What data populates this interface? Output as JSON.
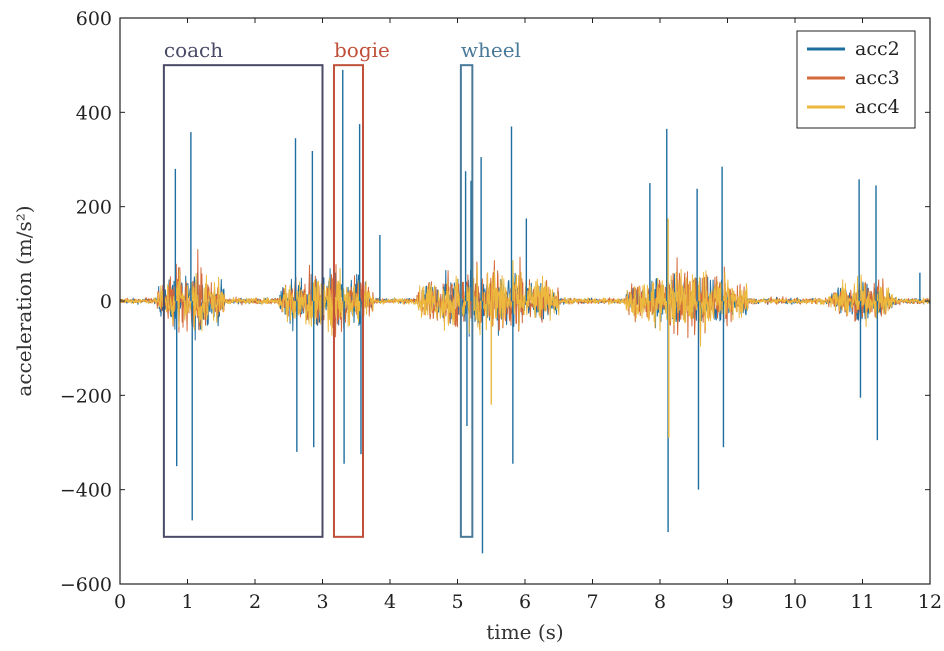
{
  "chart_data": {
    "type": "line",
    "xlabel": "time (s)",
    "ylabel": "acceleration (m/s²)",
    "xlim": [
      0,
      12
    ],
    "ylim": [
      -600,
      600
    ],
    "x_ticks": [
      0,
      1,
      2,
      3,
      4,
      5,
      6,
      7,
      8,
      9,
      10,
      11,
      12
    ],
    "y_ticks": [
      -600,
      -400,
      -200,
      0,
      200,
      400,
      600
    ],
    "y_tick_labels": [
      "−600",
      "−400",
      "−200",
      "0",
      "200",
      "400",
      "600"
    ],
    "grid": false,
    "legend_position": "top-right",
    "series": [
      {
        "name": "acc2",
        "color": "#1f6ea0"
      },
      {
        "name": "acc3",
        "color": "#d46a3a"
      },
      {
        "name": "acc4",
        "color": "#ecb93e"
      }
    ],
    "activity_regions": [
      {
        "x": [
          0.55,
          1.55
        ],
        "amp": 80
      },
      {
        "x": [
          2.35,
          3.75
        ],
        "amp": 80
      },
      {
        "x": [
          4.4,
          6.5
        ],
        "amp": 80
      },
      {
        "x": [
          7.5,
          9.3
        ],
        "amp": 75
      },
      {
        "x": [
          10.5,
          11.5
        ],
        "amp": 45
      }
    ],
    "spikes": [
      {
        "series": "acc2",
        "x": 0.82,
        "y": 280
      },
      {
        "series": "acc2",
        "x": 0.84,
        "y": -350
      },
      {
        "series": "acc2",
        "x": 1.05,
        "y": 358
      },
      {
        "series": "acc2",
        "x": 1.07,
        "y": -465
      },
      {
        "series": "acc2",
        "x": 2.6,
        "y": 345
      },
      {
        "series": "acc2",
        "x": 2.62,
        "y": -320
      },
      {
        "series": "acc2",
        "x": 2.85,
        "y": 318
      },
      {
        "series": "acc2",
        "x": 2.87,
        "y": -310
      },
      {
        "series": "acc2",
        "x": 3.3,
        "y": 490
      },
      {
        "series": "acc2",
        "x": 3.32,
        "y": -345
      },
      {
        "series": "acc2",
        "x": 3.55,
        "y": 375
      },
      {
        "series": "acc2",
        "x": 3.57,
        "y": -325
      },
      {
        "series": "acc2",
        "x": 3.85,
        "y": 140
      },
      {
        "series": "acc2",
        "x": 5.12,
        "y": 275
      },
      {
        "series": "acc2",
        "x": 5.14,
        "y": -265
      },
      {
        "series": "acc2",
        "x": 5.2,
        "y": 255
      },
      {
        "series": "acc2",
        "x": 5.35,
        "y": 305
      },
      {
        "series": "acc2",
        "x": 5.37,
        "y": -535
      },
      {
        "series": "acc2",
        "x": 5.8,
        "y": 370
      },
      {
        "series": "acc2",
        "x": 5.82,
        "y": -345
      },
      {
        "series": "acc2",
        "x": 6.02,
        "y": 175
      },
      {
        "series": "acc2",
        "x": 7.85,
        "y": 250
      },
      {
        "series": "acc2",
        "x": 8.1,
        "y": 365
      },
      {
        "series": "acc2",
        "x": 8.12,
        "y": -490
      },
      {
        "series": "acc2",
        "x": 8.55,
        "y": 238
      },
      {
        "series": "acc2",
        "x": 8.57,
        "y": -400
      },
      {
        "series": "acc2",
        "x": 8.92,
        "y": 285
      },
      {
        "series": "acc2",
        "x": 8.94,
        "y": -310
      },
      {
        "series": "acc2",
        "x": 10.95,
        "y": 258
      },
      {
        "series": "acc2",
        "x": 10.97,
        "y": -205
      },
      {
        "series": "acc2",
        "x": 11.2,
        "y": 245
      },
      {
        "series": "acc2",
        "x": 11.22,
        "y": -295
      },
      {
        "series": "acc2",
        "x": 11.85,
        "y": 60
      },
      {
        "series": "acc4",
        "x": 8.12,
        "y": 175
      },
      {
        "series": "acc4",
        "x": 8.13,
        "y": -290
      },
      {
        "series": "acc4",
        "x": 5.5,
        "y": -220
      },
      {
        "series": "acc4",
        "x": 3.17,
        "y": -190
      }
    ],
    "annotations": [
      {
        "label": "coach",
        "x": [
          0.65,
          3.0
        ],
        "y": [
          -500,
          500
        ],
        "color": "#4a4a66"
      },
      {
        "label": "bogie",
        "x": [
          3.17,
          3.6
        ],
        "y": [
          -500,
          500
        ],
        "color": "#c0503a"
      },
      {
        "label": "wheel",
        "x": [
          5.05,
          5.22
        ],
        "y": [
          -500,
          500
        ],
        "color": "#4a7a99"
      }
    ]
  }
}
